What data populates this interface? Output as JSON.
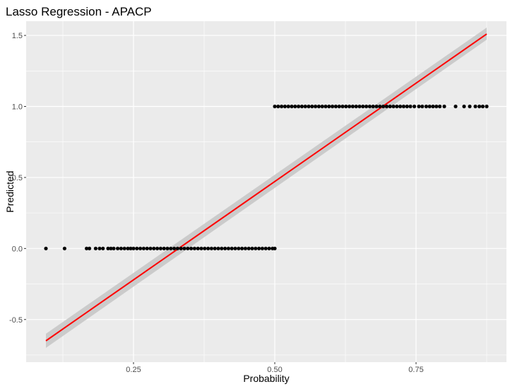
{
  "chart_data": {
    "type": "scatter",
    "title": "Lasso Regression - APACP",
    "xlabel": "Probability",
    "ylabel": "Predicted",
    "xlim": [
      0.06,
      0.91
    ],
    "ylim": [
      -0.8,
      1.6
    ],
    "x_ticks": [
      0.25,
      0.5,
      0.75
    ],
    "x_tick_labels": [
      "0.25",
      "0.50",
      "0.75"
    ],
    "y_ticks": [
      -0.5,
      0.0,
      0.5,
      1.0,
      1.5
    ],
    "y_tick_labels": [
      "-0.5",
      "0.0",
      "0.5",
      "1.0",
      "1.5"
    ],
    "grid": true,
    "series": [
      {
        "kind": "points",
        "color": "#000000",
        "points": [
          {
            "x": 0.095,
            "y": 0.0
          },
          {
            "x": 0.128,
            "y": 0.0
          },
          {
            "x": 0.167,
            "y": 0.0
          },
          {
            "x": 0.172,
            "y": 0.0
          },
          {
            "x": 0.183,
            "y": 0.0
          },
          {
            "x": 0.19,
            "y": 0.0
          },
          {
            "x": 0.196,
            "y": 0.0
          },
          {
            "x": 0.205,
            "y": 0.0
          },
          {
            "x": 0.21,
            "y": 0.0
          },
          {
            "x": 0.215,
            "y": 0.0
          },
          {
            "x": 0.222,
            "y": 0.0
          },
          {
            "x": 0.228,
            "y": 0.0
          },
          {
            "x": 0.234,
            "y": 0.0
          },
          {
            "x": 0.24,
            "y": 0.0
          },
          {
            "x": 0.245,
            "y": 0.0
          },
          {
            "x": 0.25,
            "y": 0.0
          },
          {
            "x": 0.256,
            "y": 0.0
          },
          {
            "x": 0.262,
            "y": 0.0
          },
          {
            "x": 0.268,
            "y": 0.0
          },
          {
            "x": 0.274,
            "y": 0.0
          },
          {
            "x": 0.28,
            "y": 0.0
          },
          {
            "x": 0.286,
            "y": 0.0
          },
          {
            "x": 0.292,
            "y": 0.0
          },
          {
            "x": 0.298,
            "y": 0.0
          },
          {
            "x": 0.304,
            "y": 0.0
          },
          {
            "x": 0.31,
            "y": 0.0
          },
          {
            "x": 0.316,
            "y": 0.0
          },
          {
            "x": 0.322,
            "y": 0.0
          },
          {
            "x": 0.328,
            "y": 0.0
          },
          {
            "x": 0.334,
            "y": 0.0
          },
          {
            "x": 0.34,
            "y": 0.0
          },
          {
            "x": 0.346,
            "y": 0.0
          },
          {
            "x": 0.352,
            "y": 0.0
          },
          {
            "x": 0.358,
            "y": 0.0
          },
          {
            "x": 0.364,
            "y": 0.0
          },
          {
            "x": 0.37,
            "y": 0.0
          },
          {
            "x": 0.376,
            "y": 0.0
          },
          {
            "x": 0.382,
            "y": 0.0
          },
          {
            "x": 0.388,
            "y": 0.0
          },
          {
            "x": 0.394,
            "y": 0.0
          },
          {
            "x": 0.4,
            "y": 0.0
          },
          {
            "x": 0.406,
            "y": 0.0
          },
          {
            "x": 0.412,
            "y": 0.0
          },
          {
            "x": 0.418,
            "y": 0.0
          },
          {
            "x": 0.424,
            "y": 0.0
          },
          {
            "x": 0.43,
            "y": 0.0
          },
          {
            "x": 0.436,
            "y": 0.0
          },
          {
            "x": 0.442,
            "y": 0.0
          },
          {
            "x": 0.448,
            "y": 0.0
          },
          {
            "x": 0.454,
            "y": 0.0
          },
          {
            "x": 0.46,
            "y": 0.0
          },
          {
            "x": 0.466,
            "y": 0.0
          },
          {
            "x": 0.472,
            "y": 0.0
          },
          {
            "x": 0.478,
            "y": 0.0
          },
          {
            "x": 0.484,
            "y": 0.0
          },
          {
            "x": 0.49,
            "y": 0.0
          },
          {
            "x": 0.496,
            "y": 0.0
          },
          {
            "x": 0.5,
            "y": 0.0
          },
          {
            "x": 0.5,
            "y": 1.0
          },
          {
            "x": 0.506,
            "y": 1.0
          },
          {
            "x": 0.512,
            "y": 1.0
          },
          {
            "x": 0.518,
            "y": 1.0
          },
          {
            "x": 0.524,
            "y": 1.0
          },
          {
            "x": 0.53,
            "y": 1.0
          },
          {
            "x": 0.536,
            "y": 1.0
          },
          {
            "x": 0.542,
            "y": 1.0
          },
          {
            "x": 0.548,
            "y": 1.0
          },
          {
            "x": 0.554,
            "y": 1.0
          },
          {
            "x": 0.56,
            "y": 1.0
          },
          {
            "x": 0.566,
            "y": 1.0
          },
          {
            "x": 0.572,
            "y": 1.0
          },
          {
            "x": 0.578,
            "y": 1.0
          },
          {
            "x": 0.584,
            "y": 1.0
          },
          {
            "x": 0.59,
            "y": 1.0
          },
          {
            "x": 0.596,
            "y": 1.0
          },
          {
            "x": 0.602,
            "y": 1.0
          },
          {
            "x": 0.608,
            "y": 1.0
          },
          {
            "x": 0.614,
            "y": 1.0
          },
          {
            "x": 0.62,
            "y": 1.0
          },
          {
            "x": 0.626,
            "y": 1.0
          },
          {
            "x": 0.632,
            "y": 1.0
          },
          {
            "x": 0.638,
            "y": 1.0
          },
          {
            "x": 0.644,
            "y": 1.0
          },
          {
            "x": 0.65,
            "y": 1.0
          },
          {
            "x": 0.656,
            "y": 1.0
          },
          {
            "x": 0.662,
            "y": 1.0
          },
          {
            "x": 0.668,
            "y": 1.0
          },
          {
            "x": 0.674,
            "y": 1.0
          },
          {
            "x": 0.68,
            "y": 1.0
          },
          {
            "x": 0.686,
            "y": 1.0
          },
          {
            "x": 0.692,
            "y": 1.0
          },
          {
            "x": 0.698,
            "y": 1.0
          },
          {
            "x": 0.704,
            "y": 1.0
          },
          {
            "x": 0.71,
            "y": 1.0
          },
          {
            "x": 0.716,
            "y": 1.0
          },
          {
            "x": 0.722,
            "y": 1.0
          },
          {
            "x": 0.728,
            "y": 1.0
          },
          {
            "x": 0.734,
            "y": 1.0
          },
          {
            "x": 0.74,
            "y": 1.0
          },
          {
            "x": 0.747,
            "y": 1.0
          },
          {
            "x": 0.755,
            "y": 1.0
          },
          {
            "x": 0.761,
            "y": 1.0
          },
          {
            "x": 0.768,
            "y": 1.0
          },
          {
            "x": 0.774,
            "y": 1.0
          },
          {
            "x": 0.78,
            "y": 1.0
          },
          {
            "x": 0.786,
            "y": 1.0
          },
          {
            "x": 0.792,
            "y": 1.0
          },
          {
            "x": 0.8,
            "y": 1.0
          },
          {
            "x": 0.82,
            "y": 1.0
          },
          {
            "x": 0.835,
            "y": 1.0
          },
          {
            "x": 0.845,
            "y": 1.0
          },
          {
            "x": 0.855,
            "y": 1.0
          },
          {
            "x": 0.862,
            "y": 1.0
          },
          {
            "x": 0.868,
            "y": 1.0
          },
          {
            "x": 0.875,
            "y": 1.0
          }
        ]
      },
      {
        "kind": "line",
        "color": "#ff0000",
        "x": [
          0.095,
          0.875
        ],
        "y": [
          -0.65,
          1.51
        ],
        "band": {
          "color": "#c8c8c8",
          "lower": [
            -0.7,
            1.47
          ],
          "upper": [
            -0.6,
            1.555
          ]
        }
      }
    ]
  }
}
